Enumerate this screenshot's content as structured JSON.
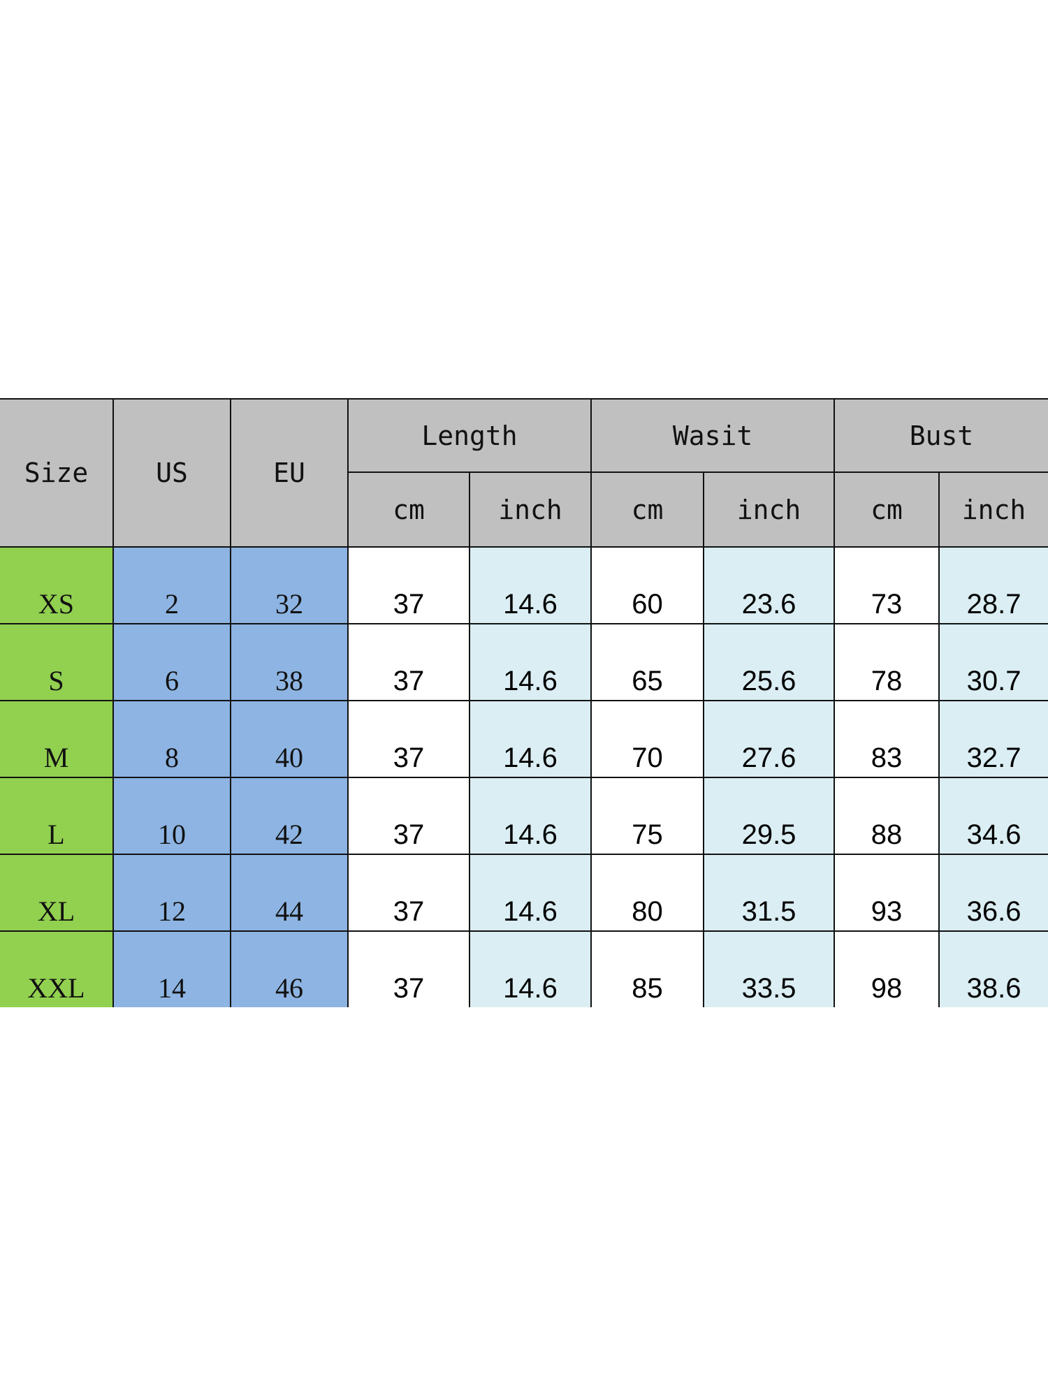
{
  "header": {
    "size": "Size",
    "us": "US",
    "eu": "EU",
    "length": "Length",
    "waist": "Wasit",
    "bust": "Bust",
    "length_cm": "cm",
    "length_inch": "inch",
    "waist_cm": "cm",
    "waist_inch": "inch",
    "bust_cm": "cm",
    "bust_inch": "inch"
  },
  "rows": [
    {
      "size": "XS",
      "us": "2",
      "eu": "32",
      "length_cm": "37",
      "length_inch": "14.6",
      "waist_cm": "60",
      "waist_inch": "23.6",
      "bust_cm": "73",
      "bust_inch": "28.7"
    },
    {
      "size": "S",
      "us": "6",
      "eu": "38",
      "length_cm": "37",
      "length_inch": "14.6",
      "waist_cm": "65",
      "waist_inch": "25.6",
      "bust_cm": "78",
      "bust_inch": "30.7"
    },
    {
      "size": "M",
      "us": "8",
      "eu": "40",
      "length_cm": "37",
      "length_inch": "14.6",
      "waist_cm": "70",
      "waist_inch": "27.6",
      "bust_cm": "83",
      "bust_inch": "32.7"
    },
    {
      "size": "L",
      "us": "10",
      "eu": "42",
      "length_cm": "37",
      "length_inch": "14.6",
      "waist_cm": "75",
      "waist_inch": "29.5",
      "bust_cm": "88",
      "bust_inch": "34.6"
    },
    {
      "size": "XL",
      "us": "12",
      "eu": "44",
      "length_cm": "37",
      "length_inch": "14.6",
      "waist_cm": "80",
      "waist_inch": "31.5",
      "bust_cm": "93",
      "bust_inch": "36.6"
    },
    {
      "size": "XXL",
      "us": "14",
      "eu": "46",
      "length_cm": "37",
      "length_inch": "14.6",
      "waist_cm": "85",
      "waist_inch": "33.5",
      "bust_cm": "98",
      "bust_inch": "38.6"
    }
  ],
  "colors": {
    "header_bg": "#c0c0c0",
    "size_column_bg": "#92d050",
    "us_eu_column_bg": "#8db4e2",
    "inch_column_bg": "#daeef3",
    "cm_column_bg": "#ffffff"
  }
}
